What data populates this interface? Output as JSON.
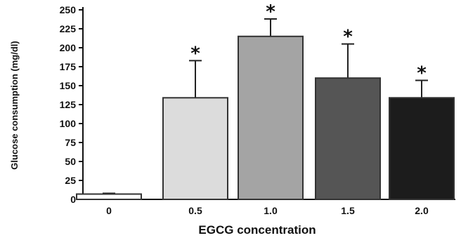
{
  "chart_data": {
    "type": "bar",
    "xlabel": "EGCG concentration",
    "ylabel": "Glucose consumption (mg/dl)",
    "categories": [
      "0",
      "0.5",
      "1.0",
      "1.5",
      "2.0"
    ],
    "values": [
      7,
      134,
      215,
      160,
      134
    ],
    "error_upper": [
      8,
      183,
      238,
      205,
      157
    ],
    "significance": [
      "",
      "*",
      "*",
      "*",
      "*"
    ],
    "bar_colors": [
      "#ffffff",
      "#dcdcdc",
      "#a4a4a4",
      "#555555",
      "#1c1c1c"
    ],
    "ylim": [
      0,
      250
    ],
    "yticks": [
      "0",
      "25",
      "50",
      "75",
      "100",
      "125",
      "150",
      "175",
      "200",
      "225",
      "250"
    ],
    "grid": false
  }
}
